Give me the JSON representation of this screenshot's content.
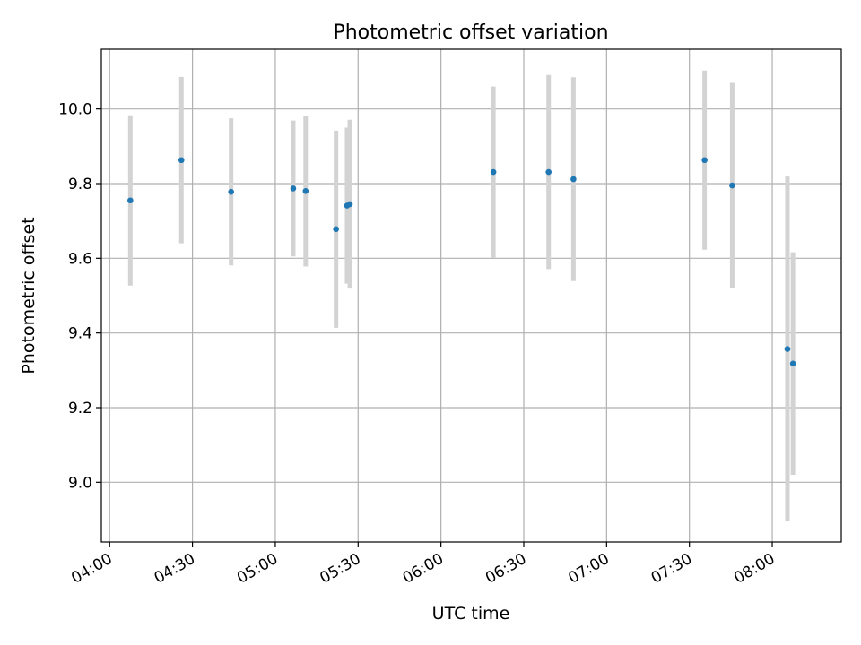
{
  "chart_data": {
    "type": "scatter",
    "title": "Photometric offset variation",
    "xlabel": "UTC time",
    "ylabel": "Photometric offset",
    "x_axis_type": "time",
    "xlim": [
      "03:57",
      "08:25"
    ],
    "ylim": [
      8.84,
      10.16
    ],
    "grid": true,
    "x_ticks": [
      "04:00",
      "04:30",
      "05:00",
      "05:30",
      "06:00",
      "06:30",
      "07:00",
      "07:30",
      "08:00"
    ],
    "y_ticks": [
      9.0,
      9.2,
      9.4,
      9.6,
      9.8,
      10.0
    ],
    "y_tick_labels": [
      "9.0",
      "9.2",
      "9.4",
      "9.6",
      "9.8",
      "10.0"
    ],
    "series": [
      {
        "marker_color": "#1f77b4",
        "errorbar_color": "#d3d3d3",
        "points": [
          {
            "x": "04:07:30",
            "y": 9.755,
            "err": 0.228
          },
          {
            "x": "04:26:00",
            "y": 9.863,
            "err": 0.223
          },
          {
            "x": "04:44:00",
            "y": 9.778,
            "err": 0.197
          },
          {
            "x": "05:06:30",
            "y": 9.787,
            "err": 0.182
          },
          {
            "x": "05:11:00",
            "y": 9.78,
            "err": 0.202
          },
          {
            "x": "05:22:00",
            "y": 9.678,
            "err": 0.264
          },
          {
            "x": "05:26:00",
            "y": 9.741,
            "err": 0.209
          },
          {
            "x": "05:27:00",
            "y": 9.745,
            "err": 0.226
          },
          {
            "x": "06:19:00",
            "y": 9.831,
            "err": 0.229
          },
          {
            "x": "06:39:00",
            "y": 9.831,
            "err": 0.26
          },
          {
            "x": "06:48:00",
            "y": 9.812,
            "err": 0.273
          },
          {
            "x": "07:35:30",
            "y": 9.863,
            "err": 0.24
          },
          {
            "x": "07:45:30",
            "y": 9.795,
            "err": 0.275
          },
          {
            "x": "08:05:30",
            "y": 9.357,
            "err": 0.462
          },
          {
            "x": "08:07:30",
            "y": 9.318,
            "err": 0.298
          }
        ]
      }
    ]
  }
}
